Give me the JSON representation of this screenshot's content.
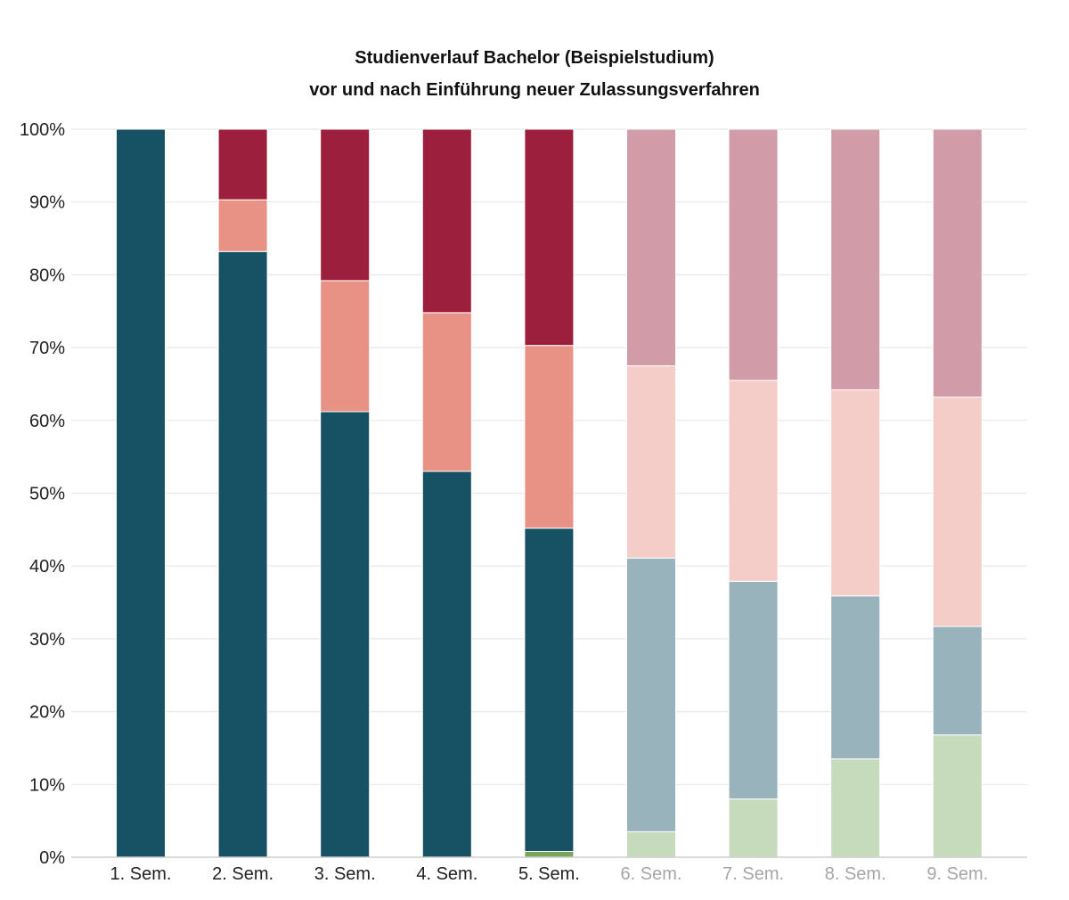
{
  "chart_data": {
    "type": "bar",
    "stacked": true,
    "title": "Studienverlauf Bachelor (Beispielstudium)",
    "subtitle": "vor und nach Einführung neuer Zulassungsverfahren",
    "xlabel": "",
    "ylabel": "",
    "ylim": [
      0,
      100
    ],
    "y_ticks": [
      "0%",
      "10%",
      "20%",
      "30%",
      "40%",
      "50%",
      "60%",
      "70%",
      "80%",
      "90%",
      "100%"
    ],
    "grid": true,
    "legend": "none",
    "categories": [
      "1. Sem.",
      "2. Sem.",
      "3. Sem.",
      "4. Sem.",
      "5. Sem.",
      "6. Sem.",
      "7. Sem.",
      "8. Sem.",
      "9. Sem."
    ],
    "faded_from_index": 5,
    "series": [
      {
        "values": [
          0,
          0,
          0,
          0,
          0.8,
          3.5,
          8.0,
          13.5,
          16.8
        ],
        "color": "#7aa35c",
        "faded_color": "#c6dbbb"
      },
      {
        "values": [
          100,
          83.2,
          61.2,
          53.0,
          44.4,
          37.6,
          29.9,
          22.4,
          14.9
        ],
        "color": "#165263",
        "faded_color": "#98b3bb"
      },
      {
        "values": [
          0,
          7.1,
          18.0,
          21.8,
          25.1,
          26.4,
          27.6,
          28.3,
          31.5
        ],
        "color": "#e89285",
        "faded_color": "#f4cdc9"
      },
      {
        "values": [
          0,
          9.7,
          20.8,
          25.2,
          29.7,
          32.5,
          34.5,
          35.8,
          36.8
        ],
        "color": "#9c1f3e",
        "faded_color": "#d19ba8"
      }
    ],
    "tick_color": "#222222",
    "faded_tick_color": "#a6a6a6",
    "grid_color": "#e8e8e8"
  }
}
